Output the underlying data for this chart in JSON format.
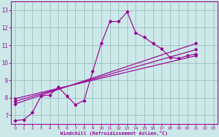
{
  "bg_color": "#cce8e8",
  "grid_color": "#99bbbb",
  "line_color": "#990099",
  "xlabel": "Windchill (Refroidissement éolien,°C)",
  "xlabel_color": "#990099",
  "xlim": [
    -0.5,
    23.5
  ],
  "ylim": [
    6.5,
    13.5
  ],
  "yticks": [
    7,
    8,
    9,
    10,
    11,
    12,
    13
  ],
  "xticks": [
    0,
    1,
    2,
    3,
    4,
    5,
    6,
    7,
    8,
    9,
    10,
    11,
    12,
    13,
    14,
    15,
    16,
    17,
    18,
    19,
    20,
    21,
    22,
    23
  ],
  "main_x": [
    0,
    1,
    2,
    3,
    4,
    5,
    6,
    7,
    8,
    9,
    10,
    11,
    12,
    13,
    14,
    15,
    16,
    17,
    18,
    19,
    20,
    21
  ],
  "main_y": [
    6.7,
    6.75,
    7.15,
    8.1,
    8.15,
    8.6,
    8.1,
    7.6,
    7.85,
    9.5,
    11.1,
    12.35,
    12.35,
    12.9,
    11.7,
    11.45,
    11.1,
    10.8,
    10.3,
    10.25,
    10.4,
    10.5
  ],
  "trend1_x": [
    0,
    21
  ],
  "trend1_y": [
    7.65,
    11.1
  ],
  "trend2_x": [
    0,
    21
  ],
  "trend2_y": [
    7.8,
    10.75
  ],
  "trend3_x": [
    0,
    21
  ],
  "trend3_y": [
    7.95,
    10.4
  ],
  "marker": "D",
  "markersize": 2.0,
  "linewidth": 0.9
}
